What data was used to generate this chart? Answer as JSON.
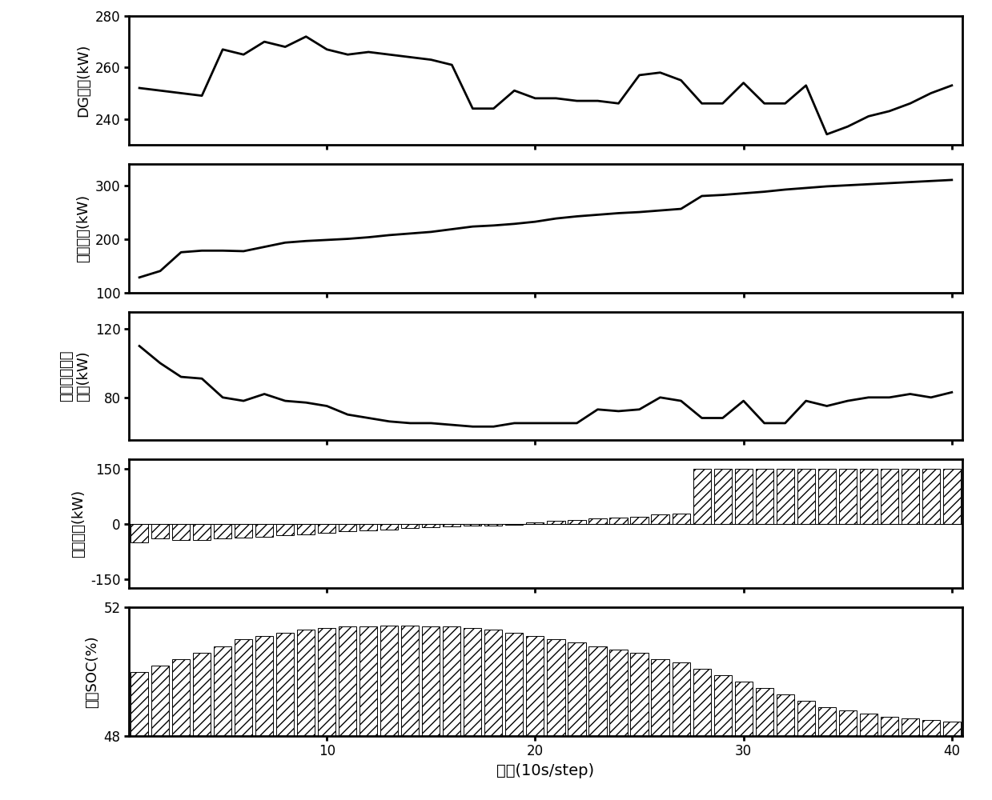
{
  "dg_output": [
    252,
    251,
    250,
    249,
    267,
    265,
    270,
    268,
    272,
    267,
    265,
    266,
    265,
    264,
    263,
    261,
    244,
    244,
    251,
    248,
    248,
    247,
    247,
    246,
    257,
    258,
    255,
    246,
    246,
    254,
    246,
    246,
    253,
    234,
    237,
    241,
    243,
    246,
    250,
    253
  ],
  "load_output": [
    128,
    140,
    175,
    178,
    178,
    177,
    185,
    193,
    196,
    198,
    200,
    203,
    207,
    210,
    213,
    218,
    223,
    225,
    228,
    232,
    238,
    242,
    245,
    248,
    250,
    253,
    256,
    280,
    282,
    285,
    288,
    292,
    295,
    298,
    300,
    302,
    304,
    306,
    308,
    310
  ],
  "micro_turbine": [
    110,
    100,
    92,
    91,
    80,
    78,
    82,
    78,
    77,
    75,
    70,
    68,
    66,
    65,
    65,
    64,
    63,
    63,
    65,
    65,
    65,
    65,
    73,
    72,
    73,
    80,
    78,
    68,
    68,
    78,
    65,
    65,
    78,
    75,
    78,
    80,
    80,
    82,
    80,
    83
  ],
  "storage_output": [
    -50,
    -40,
    -45,
    -43,
    -40,
    -38,
    -35,
    -30,
    -28,
    -25,
    -20,
    -18,
    -15,
    -12,
    -10,
    -8,
    -5,
    -4,
    -3,
    5,
    8,
    10,
    15,
    18,
    20,
    25,
    28,
    150,
    150,
    150,
    150,
    150,
    150,
    150,
    150,
    150,
    150,
    150,
    150,
    150
  ],
  "soc": [
    50.0,
    50.2,
    50.4,
    50.6,
    50.8,
    51.0,
    51.1,
    51.2,
    51.3,
    51.35,
    51.4,
    51.42,
    51.43,
    51.43,
    51.42,
    51.4,
    51.35,
    51.3,
    51.22,
    51.1,
    51.0,
    50.9,
    50.8,
    50.7,
    50.6,
    50.4,
    50.3,
    50.1,
    49.9,
    49.7,
    49.5,
    49.3,
    49.1,
    48.9,
    48.8,
    48.7,
    48.6,
    48.55,
    48.5,
    48.45
  ],
  "xlabel": "时步(10s/step)",
  "ylabel_dg": "DG出力(kW)",
  "ylabel_load": "负荷出力(kW)",
  "ylabel_turbine_line1": "微型燃气轮机",
  "ylabel_turbine_line2": "出力(kW)",
  "ylabel_storage": "储能出力(kW)",
  "ylabel_soc": "储能SOC(%)",
  "dg_ylim": [
    230,
    280
  ],
  "load_ylim": [
    100,
    340
  ],
  "turbine_ylim": [
    55,
    130
  ],
  "storage_ylim": [
    -175,
    175
  ],
  "soc_ylim": [
    48,
    52
  ],
  "dg_yticks": [
    240,
    260,
    280
  ],
  "load_yticks": [
    100,
    200,
    300
  ],
  "turbine_yticks": [
    80,
    120
  ],
  "storage_yticks": [
    -150,
    0,
    150
  ],
  "soc_yticks": [
    48,
    52
  ],
  "xlim": [
    0.5,
    40.5
  ],
  "xticks": [
    10,
    20,
    30,
    40
  ],
  "line_color": "#000000",
  "bar_color": "white",
  "bar_edgecolor": "#000000",
  "hatch": "///",
  "background": "#ffffff",
  "label_fontsize": 13,
  "tick_fontsize": 12,
  "spine_linewidth": 2.0
}
